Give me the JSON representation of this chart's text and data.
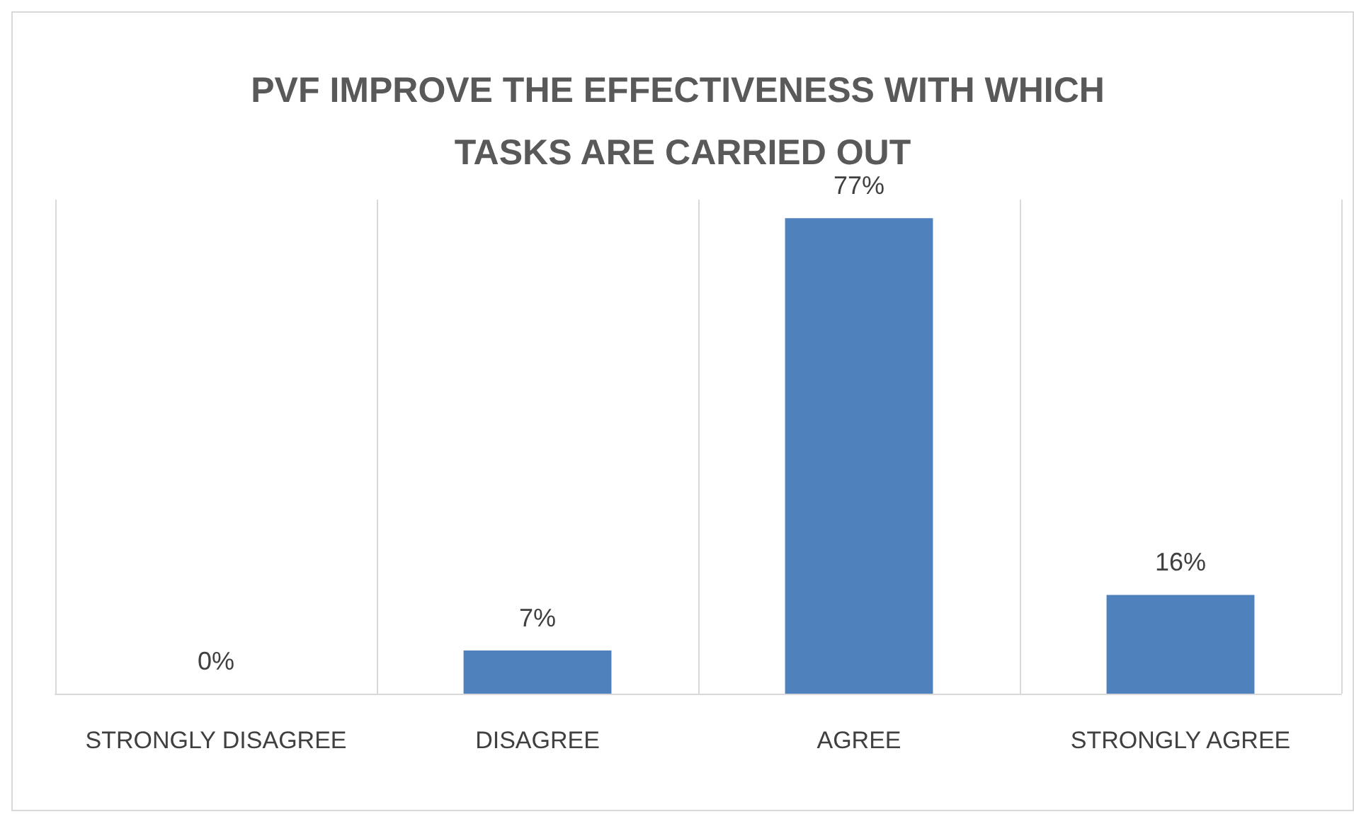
{
  "chart_data": {
    "type": "bar",
    "title": "PVF IMPROVE THE EFFECTIVENESS WITH WHICH TASKS ARE CARRIED OUT",
    "categories": [
      "STRONGLY DISAGREE",
      "DISAGREE",
      "AGREE",
      "STRONGLY AGREE"
    ],
    "values": [
      0,
      7,
      77,
      16
    ],
    "color": "#4f81bd",
    "value_labels": [
      "0%",
      "7%",
      "77%",
      "16%"
    ],
    "grid": "x"
  }
}
